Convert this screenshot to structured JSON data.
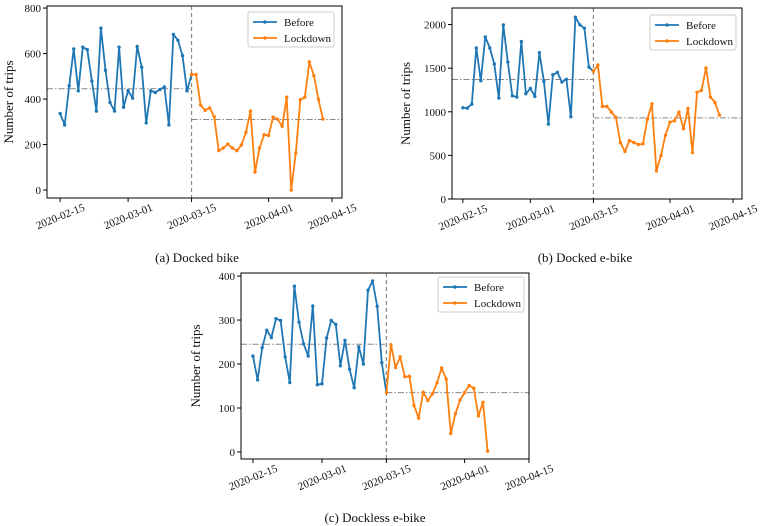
{
  "chart_data": [
    {
      "type": "line",
      "caption": "(a) Docked bike",
      "xlabel": "",
      "ylabel": "Number of trips",
      "x_unit": "days since 2020-02-15",
      "xlim": [
        -2.9,
        62.2
      ],
      "ylim": [
        -35,
        809
      ],
      "xticks": [
        {
          "x": 0,
          "label": "2020-02-15"
        },
        {
          "x": 15,
          "label": "2020-03-01"
        },
        {
          "x": 29,
          "label": "2020-03-15"
        },
        {
          "x": 46,
          "label": "2020-04-01"
        },
        {
          "x": 60,
          "label": "2020-04-15"
        }
      ],
      "yticks": [
        0,
        200,
        400,
        600,
        800
      ],
      "lockdown_start_x": 29,
      "legend": {
        "placement": "top-right",
        "entries": [
          "Before",
          "Lockdown"
        ]
      },
      "series": [
        {
          "name": "Before",
          "color": "#1f77b4",
          "start_x": 0,
          "mean": 445,
          "values": [
            336,
            286,
            458,
            620,
            436,
            628,
            617,
            479,
            347,
            712,
            526,
            385,
            347,
            628,
            364,
            437,
            404,
            631,
            540,
            295,
            436,
            429,
            442,
            453,
            286,
            684,
            658,
            591,
            436
          ]
        },
        {
          "name": "Lockdown",
          "color": "#ff7f0e",
          "start_x": 29,
          "mean": 310,
          "values": [
            508,
            508,
            373,
            351,
            361,
            322,
            173,
            185,
            202,
            185,
            173,
            198,
            253,
            347,
            79,
            185,
            243,
            240,
            321,
            311,
            280,
            408,
            0,
            163,
            397,
            408,
            563,
            503,
            399,
            312
          ]
        }
      ]
    },
    {
      "type": "line",
      "caption": "(b) Docked e-bike",
      "xlabel": "",
      "ylabel": "Number of trips",
      "x_unit": "days since 2020-02-15",
      "xlim": [
        -2.4,
        62
      ],
      "ylim": [
        0,
        2190
      ],
      "xticks": [
        {
          "x": 0,
          "label": "2020-02-15"
        },
        {
          "x": 15,
          "label": "2020-03-01"
        },
        {
          "x": 29,
          "label": "2020-03-15"
        },
        {
          "x": 46,
          "label": "2020-04-01"
        },
        {
          "x": 60,
          "label": "2020-04-15"
        }
      ],
      "yticks": [
        0,
        500,
        1000,
        1500,
        2000
      ],
      "lockdown_start_x": 29,
      "legend": {
        "placement": "top-right",
        "entries": [
          "Before",
          "Lockdown"
        ]
      },
      "series": [
        {
          "name": "Before",
          "color": "#1f77b4",
          "start_x": 0,
          "mean": 1370,
          "values": [
            1046,
            1042,
            1088,
            1732,
            1356,
            1858,
            1732,
            1548,
            1157,
            1996,
            1571,
            1184,
            1169,
            1805,
            1207,
            1268,
            1176,
            1678,
            1349,
            858,
            1425,
            1452,
            1341,
            1372,
            943,
            2084,
            1996,
            1958,
            1513
          ]
        },
        {
          "name": "Lockdown",
          "color": "#ff7f0e",
          "start_x": 29,
          "mean": 930,
          "values": [
            1464,
            1536,
            1061,
            1061,
            996,
            935,
            647,
            544,
            670,
            647,
            625,
            632,
            916,
            1092,
            322,
            498,
            732,
            881,
            897,
            996,
            805,
            1038,
            533,
            1222,
            1245,
            1502,
            1169,
            1107,
            962
          ]
        }
      ]
    },
    {
      "type": "line",
      "caption": "(c) Dockless e-bike",
      "xlabel": "",
      "ylabel": "Number of trips",
      "x_unit": "days since 2020-02-15",
      "xlim": [
        -2.6,
        60
      ],
      "ylim": [
        -16,
        407
      ],
      "xticks": [
        {
          "x": 0,
          "label": "2020-02-15"
        },
        {
          "x": 15,
          "label": "2020-03-01"
        },
        {
          "x": 29,
          "label": "2020-03-15"
        },
        {
          "x": 46,
          "label": "2020-04-01"
        },
        {
          "x": 60,
          "label": "2020-04-15"
        }
      ],
      "yticks": [
        0,
        100,
        200,
        300,
        400
      ],
      "lockdown_start_x": 29,
      "legend": {
        "placement": "top-right",
        "entries": [
          "Before",
          "Lockdown"
        ]
      },
      "series": [
        {
          "name": "Before",
          "color": "#1f77b4",
          "start_x": 0,
          "mean": 245,
          "values": [
            218,
            164,
            237,
            277,
            260,
            303,
            299,
            216,
            158,
            377,
            295,
            246,
            218,
            332,
            153,
            155,
            259,
            299,
            290,
            196,
            254,
            188,
            146,
            239,
            200,
            368,
            389,
            331,
            203
          ]
        },
        {
          "name": "Lockdown",
          "color": "#ff7f0e",
          "start_x": 29,
          "mean": 135,
          "values": [
            135,
            244,
            192,
            216,
            171,
            172,
            106,
            77,
            136,
            117,
            132,
            157,
            191,
            166,
            42,
            87,
            118,
            135,
            151,
            145,
            82,
            113,
            2
          ]
        }
      ]
    }
  ]
}
